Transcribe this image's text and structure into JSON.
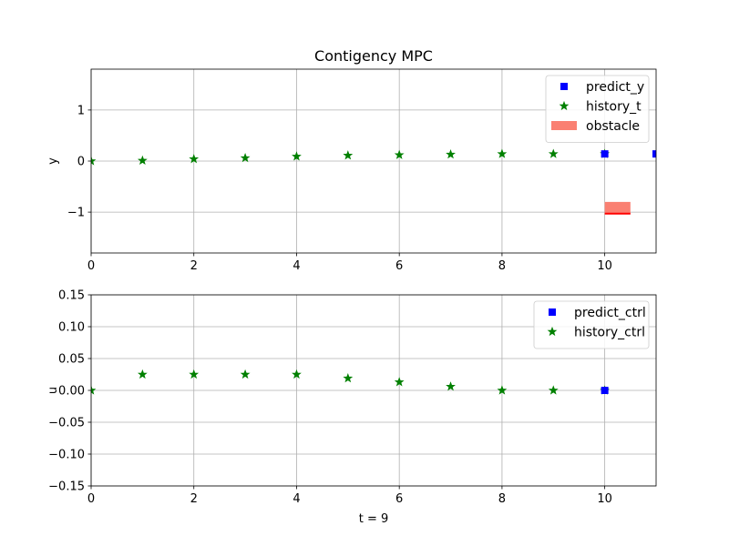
{
  "chart_data": [
    {
      "type": "scatter",
      "title": "Contigency MPC",
      "xlabel": "",
      "ylabel": "y",
      "xlim": [
        0,
        11
      ],
      "ylim": [
        -1.8,
        1.8
      ],
      "xticks": [
        0,
        2,
        4,
        6,
        8,
        10
      ],
      "yticks": [
        1,
        0,
        -1
      ],
      "grid": true,
      "legend_position": "top-right",
      "series": [
        {
          "name": "predict_y",
          "marker": "square",
          "color": "#0000ff",
          "x": [
            10,
            11
          ],
          "y": [
            0.14,
            0.14
          ]
        },
        {
          "name": "history_t",
          "marker": "star",
          "color": "#008000",
          "x": [
            0,
            1,
            2,
            3,
            4,
            5,
            6,
            7,
            8,
            9,
            10
          ],
          "y": [
            0.0,
            0.01,
            0.04,
            0.06,
            0.09,
            0.11,
            0.12,
            0.13,
            0.14,
            0.14,
            0.14
          ]
        }
      ],
      "obstacle": {
        "name": "obstacle",
        "color": "#fa8072",
        "x_range": [
          10,
          10.5
        ],
        "y_range": [
          -1.04,
          -0.8
        ],
        "edge_color": "#ff0000",
        "edge_y": -1.03
      }
    },
    {
      "type": "scatter",
      "title": "",
      "xlabel": "t = 9",
      "ylabel": "u",
      "xlim": [
        0,
        11
      ],
      "ylim": [
        -0.15,
        0.15
      ],
      "xticks": [
        0,
        2,
        4,
        6,
        8,
        10
      ],
      "yticks": [
        0.15,
        0.1,
        0.05,
        0.0,
        -0.05,
        -0.1,
        -0.15
      ],
      "ytick_labels": [
        "0.15",
        "0.10",
        "0.05",
        "0.00",
        "−0.05",
        "−0.10",
        "−0.15"
      ],
      "grid": true,
      "legend_position": "top-right",
      "series": [
        {
          "name": "predict_ctrl",
          "marker": "square",
          "color": "#0000ff",
          "x": [
            10
          ],
          "y": [
            0.0
          ]
        },
        {
          "name": "history_ctrl",
          "marker": "star",
          "color": "#008000",
          "x": [
            0,
            1,
            2,
            3,
            4,
            5,
            6,
            7,
            8,
            9,
            10
          ],
          "y": [
            0.0,
            0.025,
            0.025,
            0.025,
            0.025,
            0.019,
            0.013,
            0.006,
            0.0,
            0.0,
            0.0
          ]
        }
      ]
    }
  ]
}
